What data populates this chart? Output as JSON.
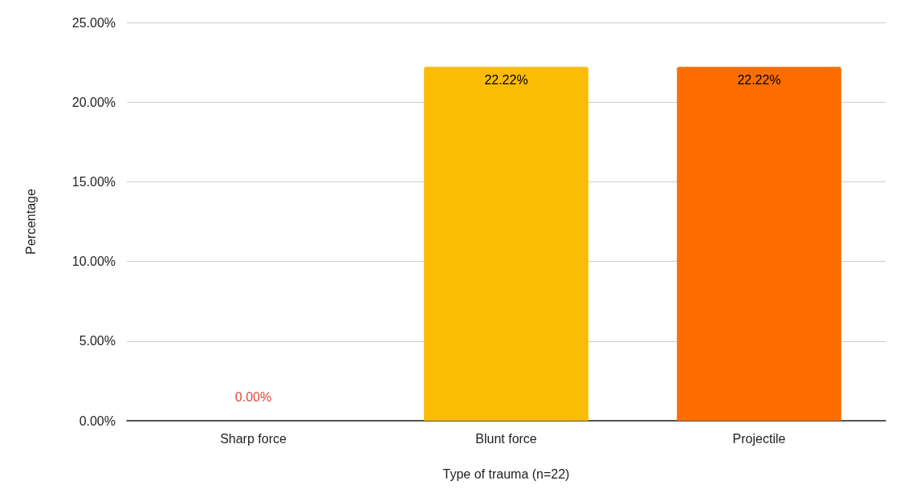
{
  "chart_data": {
    "type": "bar",
    "xlabel": "Type of trauma (n=22)",
    "ylabel": "Percentage",
    "categories": [
      "Sharp force",
      "Blunt force",
      "Projectile"
    ],
    "values": [
      0,
      22.22,
      22.22
    ],
    "colors": [
      "#ea4335",
      "#fbbc04",
      "#ff6d01"
    ],
    "value_labels": [
      "0.00%",
      "22.22%",
      "22.22%"
    ],
    "ylim": [
      0,
      25
    ],
    "yticks": [
      {
        "value": 0,
        "label": "0.00%"
      },
      {
        "value": 5,
        "label": "5.00%"
      },
      {
        "value": 10,
        "label": "10.00%"
      },
      {
        "value": 15,
        "label": "15.00%"
      },
      {
        "value": 20,
        "label": "20.00%"
      },
      {
        "value": 25,
        "label": "25.00%"
      }
    ],
    "grid": "y"
  }
}
